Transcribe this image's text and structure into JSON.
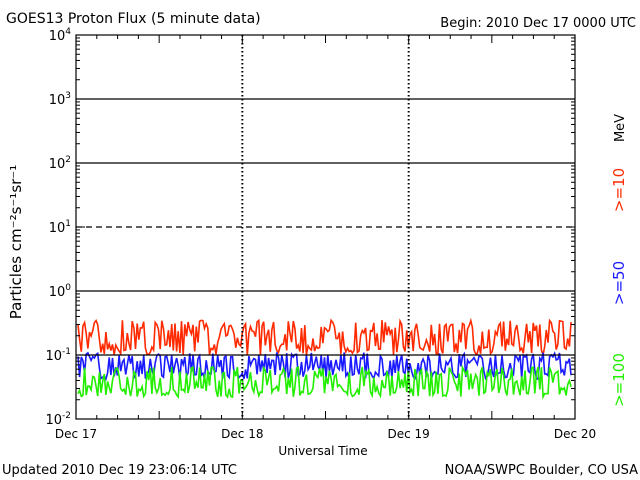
{
  "chart_data": {
    "type": "line",
    "title": "GOES13 Proton Flux (5 minute data)",
    "begin_label": "Begin: 2010 Dec 17 0000 UTC",
    "xlabel": "Universal Time",
    "ylabel": "Particles cm⁻²s⁻¹sr⁻¹",
    "y_scale": "log",
    "ylim": [
      0.01,
      10000
    ],
    "xlim": [
      "2010-12-17",
      "2010-12-20"
    ],
    "x_ticks": [
      "Dec 17",
      "Dec 18",
      "Dec 19",
      "Dec 20"
    ],
    "y_ticks": [
      {
        "base": "10",
        "exp": "-2"
      },
      {
        "base": "10",
        "exp": "-1"
      },
      {
        "base": "10",
        "exp": "0"
      },
      {
        "base": "10",
        "exp": "1"
      },
      {
        "base": "10",
        "exp": "2"
      },
      {
        "base": "10",
        "exp": "3"
      },
      {
        "base": "10",
        "exp": "4"
      }
    ],
    "threshold_lines": [
      {
        "value": 10,
        "style": "dashed"
      },
      {
        "value": 1,
        "style": "solid"
      },
      {
        "value": 100,
        "style": "solid"
      },
      {
        "value": 1000,
        "style": "solid"
      },
      {
        "value": 0.1,
        "style": "solid"
      }
    ],
    "grid": false,
    "unit_label": "MeV",
    "legend_position": "right",
    "series": [
      {
        "name": ">=10",
        "color": "#ff2a00",
        "center": 0.17,
        "range": [
          0.1,
          0.35
        ]
      },
      {
        "name": ">=50",
        "color": "#1a1aff",
        "center": 0.068,
        "range": [
          0.042,
          0.11
        ]
      },
      {
        "name": ">=100",
        "color": "#22ee00",
        "center": 0.036,
        "range": [
          0.022,
          0.065
        ]
      }
    ]
  },
  "footer": {
    "updated": "Updated 2010 Dec 19 23:06:14 UTC",
    "source": "NOAA/SWPC Boulder, CO USA"
  }
}
